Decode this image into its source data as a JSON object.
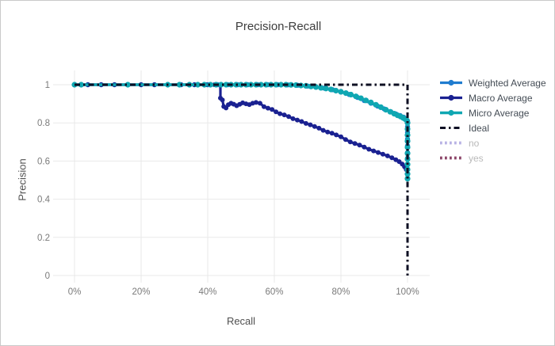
{
  "chart_data": {
    "type": "line",
    "title": "Precision-Recall",
    "xlabel": "Recall",
    "ylabel": "Precision",
    "xlim": [
      0,
      1
    ],
    "ylim": [
      0,
      1
    ],
    "grid": true,
    "legend_position": "right",
    "x_ticks": [
      {
        "v": 0.0,
        "label": "0%"
      },
      {
        "v": 0.2,
        "label": "20%"
      },
      {
        "v": 0.4,
        "label": "40%"
      },
      {
        "v": 0.6,
        "label": "60%"
      },
      {
        "v": 0.8,
        "label": "80%"
      },
      {
        "v": 1.0,
        "label": "100%"
      }
    ],
    "y_ticks": [
      {
        "v": 0.0,
        "label": "0"
      },
      {
        "v": 0.2,
        "label": "0.2"
      },
      {
        "v": 0.4,
        "label": "0.4"
      },
      {
        "v": 0.6,
        "label": "0.6"
      },
      {
        "v": 0.8,
        "label": "0.8"
      },
      {
        "v": 1.0,
        "label": "1"
      }
    ],
    "style": {
      "grid_color": "#e9e9e9",
      "tick_text_color": "#7a7a7a",
      "axis_title_color": "#4f4f4f",
      "title_color": "#3d3d3d"
    },
    "legend": {
      "text_color": "#444c55",
      "inactive_text_color": "#b9b9b9"
    },
    "series": [
      {
        "name": "Weighted Average",
        "color": "#1f7ccf",
        "style": "solid",
        "width": 3.2,
        "markers": true,
        "marker_size": 3.2,
        "visible": true,
        "points": [
          [
            0,
            1
          ],
          [
            0.04,
            1
          ],
          [
            0.08,
            1
          ],
          [
            0.12,
            1
          ],
          [
            0.16,
            1
          ],
          [
            0.2,
            1
          ],
          [
            0.24,
            1
          ],
          [
            0.28,
            1
          ],
          [
            0.32,
            1
          ],
          [
            0.36,
            1
          ],
          [
            0.4,
            1
          ],
          [
            0.43,
            1
          ],
          [
            0.46,
            1
          ],
          [
            0.49,
            1
          ],
          [
            0.52,
            1
          ],
          [
            0.55,
            1
          ],
          [
            0.58,
            1
          ],
          [
            0.61,
            1
          ],
          [
            0.64,
            0.999
          ],
          [
            0.67,
            0.997
          ],
          [
            0.7,
            0.993
          ],
          [
            0.725,
            0.988
          ],
          [
            0.75,
            0.982
          ],
          [
            0.775,
            0.974
          ],
          [
            0.8,
            0.962
          ],
          [
            0.825,
            0.949
          ],
          [
            0.85,
            0.933
          ],
          [
            0.87,
            0.917
          ],
          [
            0.89,
            0.903
          ],
          [
            0.91,
            0.888
          ],
          [
            0.93,
            0.873
          ],
          [
            0.95,
            0.858
          ],
          [
            0.965,
            0.847
          ],
          [
            0.978,
            0.838
          ],
          [
            0.988,
            0.83
          ],
          [
            0.995,
            0.822
          ],
          [
            1,
            0.81
          ],
          [
            1,
            0.78
          ],
          [
            1,
            0.75
          ],
          [
            1,
            0.715
          ],
          [
            1,
            0.68
          ],
          [
            1,
            0.645
          ],
          [
            1,
            0.615
          ]
        ]
      },
      {
        "name": "Macro Average",
        "color": "#1a2191",
        "style": "solid",
        "width": 3.2,
        "markers": true,
        "marker_size": 3.0,
        "visible": true,
        "points": [
          [
            0,
            1
          ],
          [
            0.04,
            1
          ],
          [
            0.08,
            1
          ],
          [
            0.12,
            1
          ],
          [
            0.16,
            1
          ],
          [
            0.2,
            1
          ],
          [
            0.24,
            1
          ],
          [
            0.28,
            1
          ],
          [
            0.32,
            1
          ],
          [
            0.36,
            1
          ],
          [
            0.395,
            1
          ],
          [
            0.42,
            1
          ],
          [
            0.438,
            1
          ],
          [
            0.438,
            0.93
          ],
          [
            0.444,
            0.92
          ],
          [
            0.448,
            0.886
          ],
          [
            0.455,
            0.878
          ],
          [
            0.462,
            0.895
          ],
          [
            0.47,
            0.903
          ],
          [
            0.478,
            0.898
          ],
          [
            0.487,
            0.89
          ],
          [
            0.496,
            0.897
          ],
          [
            0.505,
            0.905
          ],
          [
            0.515,
            0.9
          ],
          [
            0.525,
            0.896
          ],
          [
            0.535,
            0.903
          ],
          [
            0.545,
            0.907
          ],
          [
            0.557,
            0.903
          ],
          [
            0.569,
            0.885
          ],
          [
            0.581,
            0.877
          ],
          [
            0.593,
            0.87
          ],
          [
            0.605,
            0.858
          ],
          [
            0.617,
            0.848
          ],
          [
            0.63,
            0.842
          ],
          [
            0.643,
            0.833
          ],
          [
            0.656,
            0.822
          ],
          [
            0.669,
            0.815
          ],
          [
            0.682,
            0.807
          ],
          [
            0.695,
            0.797
          ],
          [
            0.708,
            0.79
          ],
          [
            0.721,
            0.781
          ],
          [
            0.734,
            0.772
          ],
          [
            0.747,
            0.761
          ],
          [
            0.76,
            0.752
          ],
          [
            0.773,
            0.746
          ],
          [
            0.786,
            0.737
          ],
          [
            0.8,
            0.727
          ],
          [
            0.814,
            0.713
          ],
          [
            0.828,
            0.7
          ],
          [
            0.842,
            0.692
          ],
          [
            0.856,
            0.684
          ],
          [
            0.87,
            0.673
          ],
          [
            0.884,
            0.662
          ],
          [
            0.898,
            0.653
          ],
          [
            0.912,
            0.645
          ],
          [
            0.926,
            0.636
          ],
          [
            0.94,
            0.627
          ],
          [
            0.953,
            0.617
          ],
          [
            0.965,
            0.607
          ],
          [
            0.975,
            0.597
          ],
          [
            0.984,
            0.584
          ],
          [
            0.991,
            0.57
          ],
          [
            0.996,
            0.556
          ],
          [
            1,
            0.535
          ],
          [
            1,
            0.51
          ]
        ]
      },
      {
        "name": "Micro Average",
        "color": "#0fa7b2",
        "style": "solid",
        "width": 3.4,
        "markers": true,
        "marker_size": 3.6,
        "visible": true,
        "points": [
          [
            0,
            1
          ],
          [
            0.02,
            1
          ],
          [
            0.16,
            1
          ],
          [
            0.28,
            1
          ],
          [
            0.315,
            1
          ],
          [
            0.345,
            1
          ],
          [
            0.37,
            1
          ],
          [
            0.39,
            1
          ],
          [
            0.408,
            1
          ],
          [
            0.425,
            1
          ],
          [
            0.44,
            1
          ],
          [
            0.455,
            1
          ],
          [
            0.47,
            1
          ],
          [
            0.485,
            1
          ],
          [
            0.5,
            1
          ],
          [
            0.515,
            1
          ],
          [
            0.53,
            1
          ],
          [
            0.545,
            1
          ],
          [
            0.56,
            1
          ],
          [
            0.575,
            1
          ],
          [
            0.59,
            1
          ],
          [
            0.605,
            1
          ],
          [
            0.62,
            1
          ],
          [
            0.635,
            1
          ],
          [
            0.65,
            0.999
          ],
          [
            0.665,
            0.998
          ],
          [
            0.68,
            0.996
          ],
          [
            0.695,
            0.994
          ],
          [
            0.71,
            0.991
          ],
          [
            0.725,
            0.988
          ],
          [
            0.74,
            0.984
          ],
          [
            0.755,
            0.98
          ],
          [
            0.77,
            0.975
          ],
          [
            0.785,
            0.969
          ],
          [
            0.8,
            0.963
          ],
          [
            0.815,
            0.956
          ],
          [
            0.83,
            0.948
          ],
          [
            0.845,
            0.939
          ],
          [
            0.86,
            0.929
          ],
          [
            0.875,
            0.918
          ],
          [
            0.89,
            0.907
          ],
          [
            0.905,
            0.895
          ],
          [
            0.92,
            0.882
          ],
          [
            0.935,
            0.869
          ],
          [
            0.948,
            0.858
          ],
          [
            0.96,
            0.848
          ],
          [
            0.97,
            0.84
          ],
          [
            0.979,
            0.833
          ],
          [
            0.987,
            0.826
          ],
          [
            0.993,
            0.82
          ],
          [
            0.998,
            0.813
          ],
          [
            1,
            0.8
          ],
          [
            1,
            0.768
          ],
          [
            1,
            0.736
          ],
          [
            1,
            0.704
          ],
          [
            1,
            0.672
          ],
          [
            1,
            0.64
          ],
          [
            1,
            0.61
          ],
          [
            1,
            0.582
          ],
          [
            1,
            0.556
          ],
          [
            1,
            0.532
          ],
          [
            1,
            0.508
          ]
        ]
      },
      {
        "name": "Ideal",
        "color": "#0e0f23",
        "style": "dashdot",
        "width": 3,
        "markers": false,
        "marker_size": 0,
        "visible": true,
        "points": [
          [
            0,
            1
          ],
          [
            1,
            1
          ],
          [
            1,
            0
          ]
        ]
      },
      {
        "name": "no",
        "color": "#b8b2e4",
        "style": "dotted",
        "width": 3.8,
        "markers": false,
        "marker_size": 0,
        "visible": false,
        "points": []
      },
      {
        "name": "yes",
        "color": "#8c4568",
        "style": "dotted",
        "width": 3.8,
        "markers": false,
        "marker_size": 0,
        "visible": false,
        "points": []
      }
    ]
  }
}
